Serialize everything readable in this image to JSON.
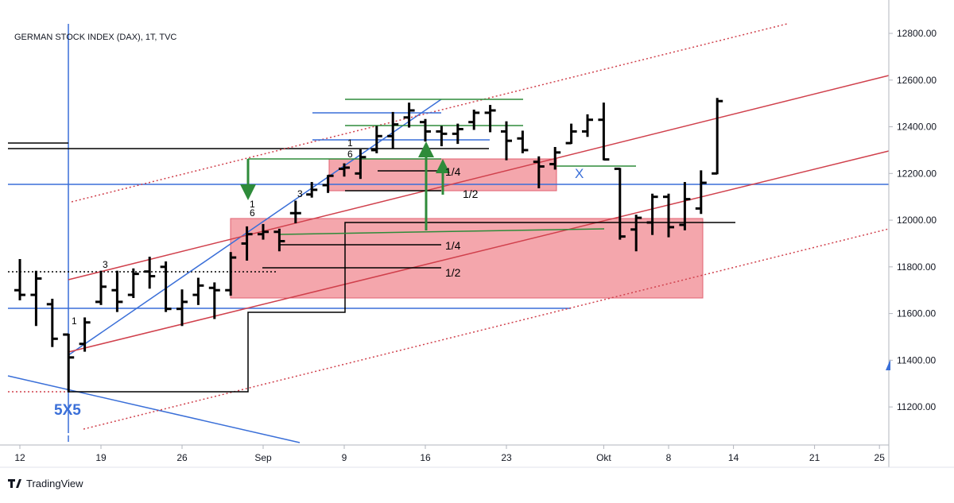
{
  "chart_data": {
    "type": "ohlc",
    "title": "GERMAN STOCK INDEX (DAX), 1T, TVC",
    "color": "#000000",
    "categories": [
      "08-12",
      "08-13",
      "08-14",
      "08-15",
      "08-16",
      "08-19",
      "08-20",
      "08-21",
      "08-22",
      "08-23",
      "08-26",
      "08-27",
      "08-28",
      "08-29",
      "08-30",
      "09-02",
      "09-03",
      "09-04",
      "09-05",
      "09-06",
      "09-09",
      "09-10",
      "09-11",
      "09-12",
      "09-13",
      "09-16",
      "09-17",
      "09-18",
      "09-19",
      "09-20",
      "09-23",
      "09-24",
      "09-25",
      "09-26",
      "09-27",
      "09-30",
      "10-01",
      "10-02",
      "10-04",
      "10-07",
      "10-08",
      "10-09",
      "10-10",
      "10-11",
      "10-14",
      "10-15",
      "10-16",
      "10-17",
      "10-18",
      "10-21",
      "10-22",
      "10-23",
      "10-24",
      "10-25"
    ],
    "open": [
      11700,
      11680,
      11640,
      11510,
      11470,
      11650,
      11700,
      11680,
      11780,
      11800,
      11620,
      11680,
      11710,
      11700,
      11900,
      11940,
      11950,
      12030,
      12110,
      12150,
      12220,
      12200,
      12300,
      12360,
      12440,
      12420,
      12380,
      12370,
      12420,
      12460,
      12380,
      12350,
      12250,
      12240,
      12330,
      12380,
      12430,
      12220,
      11960,
      11990,
      12100,
      11980,
      12050,
      12200,
      null,
      null,
      null,
      null,
      null,
      null,
      null,
      null,
      null,
      null
    ],
    "high": [
      11830,
      11780,
      11660,
      11510,
      11580,
      11780,
      11780,
      11790,
      11840,
      11820,
      11700,
      11750,
      11730,
      11860,
      11970,
      11980,
      11960,
      12080,
      12160,
      12190,
      12240,
      12300,
      12400,
      12460,
      12500,
      12430,
      12400,
      12410,
      12470,
      12490,
      12420,
      12380,
      12270,
      12310,
      12410,
      12450,
      12500,
      12220,
      12020,
      12110,
      12110,
      12160,
      12210,
      12520,
      null,
      null,
      null,
      null,
      null,
      null,
      null,
      null,
      null,
      null
    ],
    "low": [
      11660,
      11550,
      11460,
      11266,
      11440,
      11640,
      11610,
      11670,
      11710,
      11610,
      11550,
      11640,
      11580,
      11680,
      11830,
      11920,
      11870,
      11990,
      12100,
      12120,
      12190,
      12180,
      12290,
      12310,
      12400,
      12340,
      12320,
      12330,
      12390,
      12380,
      12260,
      12290,
      12140,
      12220,
      12330,
      12360,
      12260,
      11920,
      11870,
      11940,
      11930,
      11960,
      12030,
      12200,
      null,
      null,
      null,
      null,
      null,
      null,
      null,
      null,
      null,
      null
    ],
    "close": [
      11680,
      11750,
      11492,
      11412,
      11562,
      11715,
      11650,
      11770,
      11760,
      11620,
      11650,
      11720,
      11700,
      11840,
      11940,
      11950,
      11910,
      12030,
      12130,
      12190,
      12225,
      12270,
      12360,
      12410,
      12470,
      12380,
      12370,
      12390,
      12460,
      12470,
      12340,
      12300,
      12230,
      12290,
      12380,
      12430,
      12260,
      11930,
      12010,
      12100,
      11970,
      12090,
      12160,
      12510,
      null,
      null,
      null,
      null,
      null,
      null,
      null,
      null,
      null,
      null
    ],
    "ylim": [
      11037,
      12943
    ],
    "yticks": [
      {
        "value": 11200,
        "label": "11200.00"
      },
      {
        "value": 11400,
        "label": "11400.00"
      },
      {
        "value": 11600,
        "label": "11600.00"
      },
      {
        "value": 11800,
        "label": "11800.00"
      },
      {
        "value": 12000,
        "label": "12000.00"
      },
      {
        "value": 12200,
        "label": "12200.00"
      },
      {
        "value": 12400,
        "label": "12400.00"
      },
      {
        "value": 12600,
        "label": "12600.00"
      },
      {
        "value": 12800,
        "label": "12800.00"
      }
    ],
    "xticks": [
      {
        "value": "08-12",
        "label": "12"
      },
      {
        "value": "08-19",
        "label": "19"
      },
      {
        "value": "08-26",
        "label": "26"
      },
      {
        "value": "09-02",
        "label": "Sep"
      },
      {
        "value": "09-09",
        "label": "9"
      },
      {
        "value": "09-16",
        "label": "16"
      },
      {
        "value": "09-23",
        "label": "23"
      },
      {
        "value": "10-01",
        "label": "Okt"
      },
      {
        "value": "10-08",
        "label": "8"
      },
      {
        "value": "10-14",
        "label": "14"
      },
      {
        "value": "10-21",
        "label": "21"
      },
      {
        "value": "10-25",
        "label": "25"
      }
    ]
  },
  "annotations": [
    "1/4",
    "1/2",
    "1/4",
    "1/2",
    "X",
    "5X5",
    "1",
    "3",
    "1",
    "6",
    "3",
    "1",
    "6"
  ],
  "brand": "TradingView"
}
